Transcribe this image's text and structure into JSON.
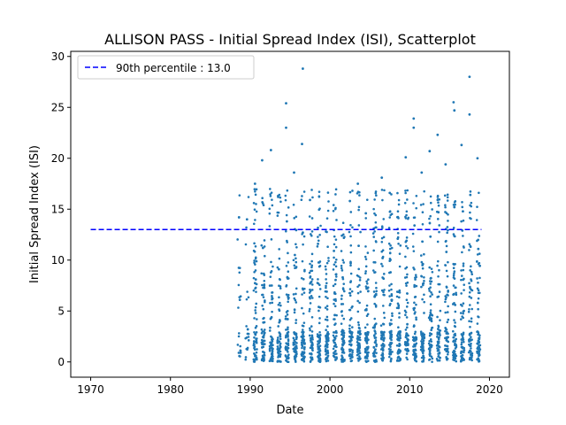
{
  "chart_data": {
    "type": "scatter",
    "title": "ALLISON PASS - Initial Spread Index (ISI), Scatterplot",
    "xlabel": "Date",
    "ylabel": "Initial Spread Index (ISI)",
    "xlim": [
      1967.5,
      2022.5
    ],
    "ylim": [
      -1.5,
      30.5
    ],
    "xticks": [
      1970,
      1980,
      1990,
      2000,
      2010,
      2020
    ],
    "yticks": [
      0,
      5,
      10,
      15,
      20,
      25,
      30
    ],
    "grid": false,
    "legend_position": "top-left",
    "series": [
      {
        "kind": "points",
        "color": "#1f77b4",
        "x": [
          1988.6,
          1988.7,
          1988.8,
          1989.6,
          1989.7,
          1990.6,
          1990.7,
          1991.5,
          1991.6,
          1991.7,
          1992.6,
          1992.7,
          1993.5,
          1993.6,
          1993.7,
          1994.5,
          1994.6,
          1994.7,
          1995.5,
          1995.6,
          1995.7,
          1996.5,
          1996.6,
          1996.7,
          1997.5,
          1997.6,
          1997.7,
          1998.5,
          1998.6,
          1998.7,
          1999.5,
          1999.6,
          1999.7,
          2000.5,
          2000.6,
          2000.7,
          2001.5,
          2001.6,
          2001.7,
          2002.5,
          2002.6,
          2002.7,
          2003.5,
          2003.6,
          2003.7,
          2004.5,
          2004.6,
          2004.7,
          2005.5,
          2005.6,
          2005.7,
          2006.5,
          2006.6,
          2006.7,
          2007.5,
          2007.6,
          2007.7,
          2008.5,
          2008.6,
          2008.7,
          2009.5,
          2009.6,
          2009.7,
          2010.5,
          2010.6,
          2010.7,
          2011.5,
          2011.6,
          2011.7,
          2012.5,
          2012.6,
          2012.7,
          2013.5,
          2013.6,
          2013.7,
          2014.5,
          2014.6,
          2014.7,
          2015.5,
          2015.6,
          2015.7,
          2016.5,
          2016.6,
          2016.7,
          2017.5,
          2017.6,
          2017.7,
          2018.5,
          2018.6,
          2018.7,
          1996.6,
          2017.5,
          1994.5,
          2015.6,
          2010.5
        ],
        "y": [
          14.2,
          6.1,
          0.9,
          14.0,
          3.2,
          17.5,
          8.1,
          19.8,
          11.2,
          0.4,
          20.8,
          7.5,
          16.3,
          9.1,
          0.6,
          23.0,
          13.8,
          4.2,
          18.6,
          10.5,
          1.1,
          21.4,
          12.7,
          2.5,
          15.9,
          7.8,
          0.3,
          11.6,
          5.4,
          0.8,
          12.8,
          6.9,
          1.7,
          10.9,
          4.6,
          0.2,
          12.4,
          8.3,
          2.1,
          15.8,
          9.7,
          0.5,
          17.5,
          11.4,
          3.3,
          14.6,
          7.2,
          0.7,
          13.1,
          6.4,
          1.9,
          18.1,
          10.2,
          0.4,
          16.6,
          8.8,
          2.6,
          12.1,
          5.3,
          0.9,
          20.1,
          11.9,
          3.7,
          23.9,
          13.4,
          1.2,
          18.6,
          9.5,
          0.6,
          20.7,
          12.3,
          4.1,
          22.3,
          14.7,
          1.5,
          19.4,
          10.8,
          0.3,
          25.5,
          15.2,
          5.6,
          21.3,
          12.9,
          2.2,
          24.3,
          16.4,
          7.1,
          20.0,
          11.1,
          0.8,
          28.8,
          28.0,
          25.4,
          24.7,
          23.0
        ]
      },
      {
        "kind": "hline",
        "name": "90th percentile : 13.0",
        "color": "#0000ff",
        "style": "dashed",
        "y": 13.0,
        "x_range": [
          1970,
          2019
        ]
      }
    ]
  }
}
